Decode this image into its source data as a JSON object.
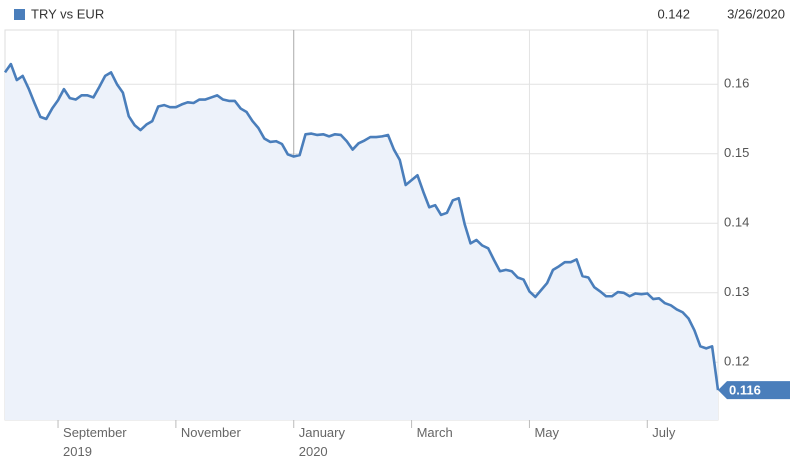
{
  "chart_data": {
    "type": "line",
    "readout_value": "0.142",
    "readout_date": "3/26/2020",
    "categories": [
      null,
      null,
      null,
      null,
      null,
      null,
      null,
      null,
      null,
      "September 2019",
      null,
      null,
      null,
      null,
      null,
      null,
      null,
      null,
      null,
      null,
      null,
      null,
      null,
      null,
      null,
      null,
      null,
      null,
      null,
      "November",
      null,
      null,
      null,
      null,
      null,
      null,
      null,
      null,
      null,
      null,
      null,
      null,
      null,
      null,
      null,
      null,
      null,
      null,
      null,
      "January 2020",
      null,
      null,
      null,
      null,
      null,
      null,
      null,
      null,
      null,
      null,
      null,
      null,
      null,
      null,
      null,
      null,
      null,
      null,
      null,
      "March",
      null,
      null,
      null,
      null,
      null,
      null,
      null,
      null,
      null,
      null,
      null,
      null,
      null,
      null,
      null,
      null,
      null,
      null,
      null,
      "May",
      null,
      null,
      null,
      null,
      null,
      null,
      null,
      null,
      null,
      null,
      null,
      null,
      null,
      null,
      null,
      null,
      null,
      null,
      null,
      "July",
      null,
      null,
      null,
      null,
      null,
      null,
      null,
      null,
      null,
      null,
      null,
      null
    ],
    "series": [
      {
        "name": "TRY vs EUR",
        "color": "#4a7ebb",
        "values": [
          0.1617,
          0.1629,
          0.1606,
          0.1612,
          0.1594,
          0.1573,
          0.1553,
          0.155,
          0.1565,
          0.1577,
          0.1593,
          0.158,
          0.1578,
          0.1584,
          0.1584,
          0.1581,
          0.1596,
          0.1612,
          0.1617,
          0.16,
          0.1588,
          0.1554,
          0.1541,
          0.1534,
          0.1542,
          0.1547,
          0.1568,
          0.157,
          0.1567,
          0.1567,
          0.1571,
          0.1574,
          0.1573,
          0.1578,
          0.1578,
          0.1581,
          0.1584,
          0.1578,
          0.1576,
          0.1576,
          0.1565,
          0.156,
          0.1547,
          0.1537,
          0.1522,
          0.1517,
          0.1518,
          0.1514,
          0.1499,
          0.1496,
          0.1498,
          0.1528,
          0.1529,
          0.1527,
          0.1528,
          0.1525,
          0.1528,
          0.1527,
          0.1518,
          0.1506,
          0.1515,
          0.1519,
          0.1524,
          0.1524,
          0.1525,
          0.1527,
          0.1506,
          0.1491,
          0.1455,
          0.1462,
          0.1469,
          0.1445,
          0.1423,
          0.1426,
          0.1412,
          0.1415,
          0.1433,
          0.1436,
          0.1399,
          0.1371,
          0.1376,
          0.1368,
          0.1364,
          0.1347,
          0.1331,
          0.1333,
          0.1331,
          0.1322,
          0.1319,
          0.1302,
          0.1294,
          0.1304,
          0.1314,
          0.1333,
          0.1338,
          0.1344,
          0.1344,
          0.1348,
          0.1324,
          0.1322,
          0.1308,
          0.1302,
          0.1295,
          0.1295,
          0.1301,
          0.13,
          0.1295,
          0.1299,
          0.1298,
          0.1299,
          0.1291,
          0.1292,
          0.1285,
          0.1282,
          0.1276,
          0.1272,
          0.1263,
          0.1246,
          0.1223,
          0.122,
          0.1223,
          0.116
        ]
      }
    ],
    "ylim": [
      0.1117,
      0.1678
    ],
    "yticks": [
      0.12,
      0.13,
      0.14,
      0.15,
      0.16
    ],
    "grid": true,
    "area_color": "#edf2fa"
  }
}
